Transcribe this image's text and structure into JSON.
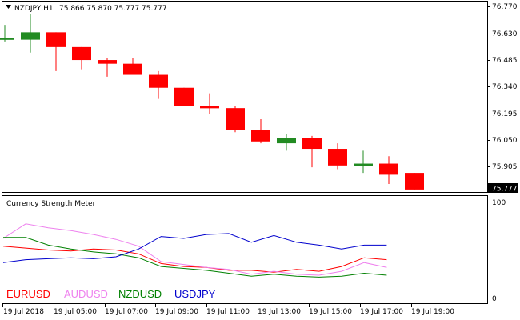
{
  "header": {
    "symbol_label": "NZDJPY,H1",
    "ohlc_label": "75.866 75.870 75.777 75.777",
    "indicator_title": "Currency Strength Meter"
  },
  "chart_data": [
    {
      "type": "candlestick",
      "symbol": "NZDJPY",
      "timeframe": "H1",
      "price_axis_ticks": [
        "76.770",
        "76.630",
        "76.485",
        "76.340",
        "76.195",
        "76.050",
        "75.905"
      ],
      "last_price_label": "75.777",
      "ylim": [
        75.77,
        76.78
      ],
      "colors": {
        "bull": "#228b22",
        "bear": "#ff0000"
      },
      "candles": [
        {
          "o": 76.6,
          "h": 76.67,
          "l": 76.58,
          "c": 76.6
        },
        {
          "o": 76.59,
          "h": 76.73,
          "l": 76.52,
          "c": 76.63
        },
        {
          "o": 76.63,
          "h": 76.63,
          "l": 76.42,
          "c": 76.55
        },
        {
          "o": 76.55,
          "h": 76.55,
          "l": 76.43,
          "c": 76.48
        },
        {
          "o": 76.48,
          "h": 76.49,
          "l": 76.39,
          "c": 76.46
        },
        {
          "o": 76.46,
          "h": 76.49,
          "l": 76.4,
          "c": 76.4
        },
        {
          "o": 76.4,
          "h": 76.42,
          "l": 76.27,
          "c": 76.33
        },
        {
          "o": 76.33,
          "h": 76.33,
          "l": 76.23,
          "c": 76.23
        },
        {
          "o": 76.23,
          "h": 76.3,
          "l": 76.19,
          "c": 76.22
        },
        {
          "o": 76.22,
          "h": 76.23,
          "l": 76.09,
          "c": 76.1
        },
        {
          "o": 76.1,
          "h": 76.16,
          "l": 76.03,
          "c": 76.04
        },
        {
          "o": 76.03,
          "h": 76.08,
          "l": 75.99,
          "c": 76.06
        },
        {
          "o": 76.06,
          "h": 76.07,
          "l": 75.9,
          "c": 76.0
        },
        {
          "o": 76.0,
          "h": 76.03,
          "l": 75.89,
          "c": 75.91
        },
        {
          "o": 75.91,
          "h": 75.99,
          "l": 75.87,
          "c": 75.92
        },
        {
          "o": 75.92,
          "h": 75.96,
          "l": 75.81,
          "c": 75.86
        },
        {
          "o": 75.87,
          "h": 75.87,
          "l": 75.78,
          "c": 75.78
        }
      ]
    },
    {
      "type": "line",
      "title": "Currency Strength Meter",
      "y_axis_ticks": [
        "100",
        "0"
      ],
      "ylim": [
        0,
        100
      ],
      "series": [
        {
          "name": "EURUSD",
          "color": "#ff0000",
          "values": [
            54,
            52,
            50,
            49,
            51,
            50,
            46,
            36,
            33,
            32,
            29,
            29,
            27,
            30,
            28,
            33,
            42,
            40
          ]
        },
        {
          "name": "AUDUSD",
          "color": "#ee82ee",
          "values": [
            62,
            77,
            73,
            70,
            66,
            61,
            54,
            38,
            35,
            32,
            30,
            25,
            28,
            25,
            24,
            28,
            37,
            32
          ]
        },
        {
          "name": "NZDUSD",
          "color": "#008000",
          "values": [
            63,
            63,
            55,
            51,
            48,
            46,
            42,
            33,
            31,
            29,
            26,
            23,
            25,
            23,
            22,
            23,
            26,
            24
          ]
        },
        {
          "name": "USDJPY",
          "color": "#0000cd",
          "values": [
            37,
            40,
            41,
            42,
            41,
            43,
            51,
            64,
            62,
            66,
            67,
            58,
            65,
            58,
            55,
            51,
            55,
            55
          ]
        }
      ]
    }
  ],
  "x_axis_ticks": [
    "19 Jul 2018",
    "19 Jul 05:00",
    "19 Jul 07:00",
    "19 Jul 09:00",
    "19 Jul 11:00",
    "19 Jul 13:00",
    "19 Jul 15:00",
    "19 Jul 17:00",
    "19 Jul 19:00"
  ]
}
